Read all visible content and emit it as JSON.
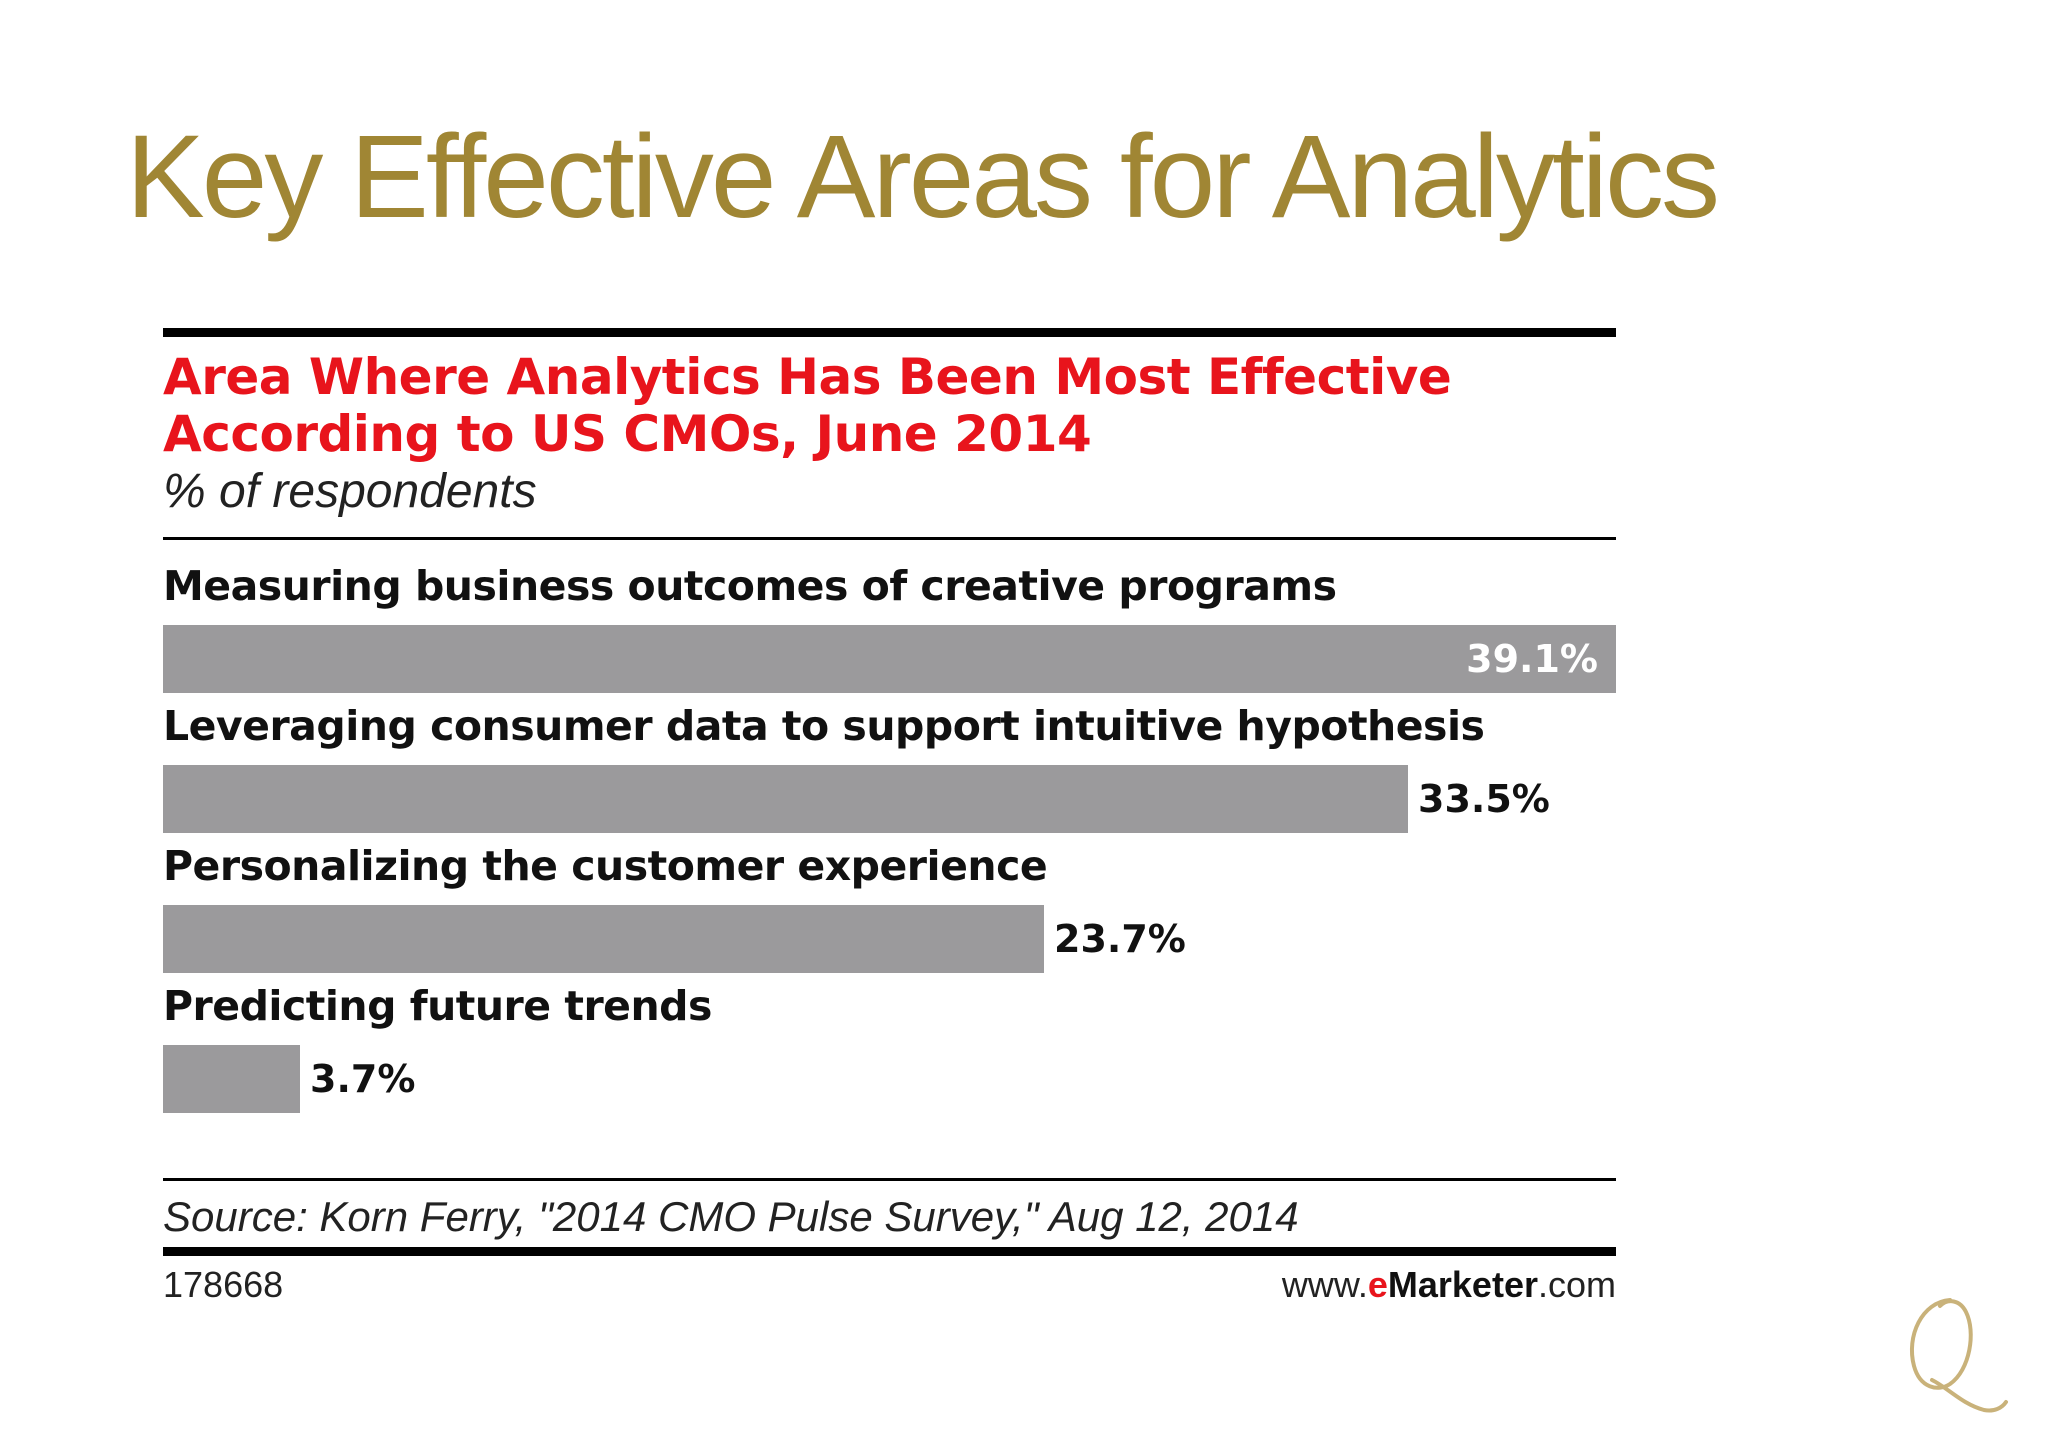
{
  "slide": {
    "title": "Key Effective Areas for Analytics"
  },
  "chart_data": {
    "type": "bar",
    "orientation": "horizontal",
    "title": "Area Where Analytics Has Been Most Effective According to US CMOs, June 2014",
    "title_lines": [
      "Area Where Analytics Has Been Most Effective",
      "According to US CMOs, June 2014"
    ],
    "subtitle": "% of respondents",
    "categories": [
      "Measuring business outcomes of creative programs",
      "Leveraging consumer data to support intuitive hypothesis",
      "Personalizing the customer experience",
      "Predicting future trends"
    ],
    "values": [
      39.1,
      33.5,
      23.7,
      3.7
    ],
    "value_labels": [
      "39.1%",
      "33.5%",
      "23.7%",
      "3.7%"
    ],
    "xlim": [
      0,
      39.1
    ],
    "grid": false,
    "bar_color": "#9b9a9c",
    "source": "Source: Korn Ferry, \"2014 CMO Pulse Survey,\" Aug 12, 2014",
    "chart_id": "178668",
    "brand": {
      "prefix": "www.",
      "e": "e",
      "marketer": "Marketer",
      "suffix": ".com"
    }
  },
  "colors": {
    "title": "#a08634",
    "chart_title": "#e8141c",
    "brand_e": "#e8141c"
  },
  "logo": {
    "icon": "script-q-logo"
  }
}
